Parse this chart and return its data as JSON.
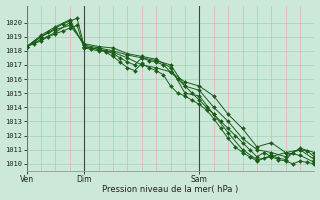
{
  "bg_color": "#cce8d8",
  "grid_color_v": "#f0a0a0",
  "grid_color_h": "#99ccbb",
  "line_color": "#1a5c1a",
  "ylim": [
    1009.5,
    1021.2
  ],
  "yticks": [
    1010,
    1011,
    1012,
    1013,
    1014,
    1015,
    1016,
    1017,
    1018,
    1019,
    1020
  ],
  "xlabel": "Pression niveau de la mer( hPa )",
  "xtick_labels": [
    "Ven",
    "Dim",
    "Sam"
  ],
  "xtick_pos": [
    0,
    24,
    72
  ],
  "vline_pos": [
    0,
    24,
    72
  ],
  "total_hours": 120,
  "series": [
    {
      "x": [
        0,
        3,
        6,
        9,
        12,
        15,
        18,
        21,
        24,
        27,
        30,
        33,
        36,
        39,
        42,
        45,
        48,
        51,
        54,
        57,
        60,
        63,
        66,
        69,
        72,
        75,
        78,
        81,
        84,
        87,
        90,
        93,
        96,
        99,
        102,
        105,
        108,
        111,
        114,
        117,
        120
      ],
      "y": [
        1018.3,
        1018.5,
        1018.7,
        1019.0,
        1019.2,
        1019.4,
        1019.6,
        1019.8,
        1018.2,
        1018.1,
        1018.0,
        1018.0,
        1017.8,
        1017.5,
        1017.2,
        1017.0,
        1017.5,
        1017.3,
        1017.2,
        1017.0,
        1016.5,
        1016.0,
        1015.5,
        1015.0,
        1014.5,
        1014.0,
        1013.5,
        1013.0,
        1012.5,
        1012.0,
        1011.5,
        1011.0,
        1010.5,
        1010.8,
        1010.5,
        1010.3,
        1010.2,
        1010.0,
        1010.2,
        1010.1,
        1010.0
      ]
    },
    {
      "x": [
        0,
        3,
        6,
        9,
        12,
        15,
        18,
        21,
        24,
        27,
        30,
        33,
        36,
        39,
        42,
        45,
        48,
        51,
        54,
        57,
        60,
        63,
        66,
        69,
        72,
        75,
        78,
        81,
        84,
        87,
        90,
        93,
        96,
        99,
        102,
        105,
        108,
        111,
        114,
        117,
        120
      ],
      "y": [
        1018.3,
        1018.6,
        1019.0,
        1019.3,
        1019.6,
        1019.9,
        1020.1,
        1020.3,
        1018.3,
        1018.2,
        1018.1,
        1017.9,
        1017.6,
        1017.2,
        1016.8,
        1016.6,
        1017.1,
        1016.8,
        1016.6,
        1016.3,
        1015.5,
        1015.0,
        1014.8,
        1014.5,
        1014.2,
        1013.8,
        1013.2,
        1012.5,
        1011.8,
        1011.2,
        1010.8,
        1010.5,
        1010.2,
        1010.4,
        1010.6,
        1010.4,
        1010.3,
        1010.8,
        1011.0,
        1010.9,
        1010.5
      ]
    },
    {
      "x": [
        0,
        6,
        12,
        18,
        24,
        30,
        36,
        42,
        48,
        54,
        60,
        66,
        72,
        78,
        84,
        90,
        96,
        102,
        108,
        114,
        120
      ],
      "y": [
        1018.3,
        1019.0,
        1019.5,
        1019.8,
        1018.5,
        1018.3,
        1018.2,
        1017.8,
        1017.6,
        1017.4,
        1016.8,
        1015.0,
        1014.8,
        1013.5,
        1012.2,
        1011.0,
        1010.3,
        1010.5,
        1010.8,
        1011.0,
        1010.3
      ]
    },
    {
      "x": [
        0,
        6,
        12,
        18,
        24,
        30,
        36,
        42,
        48,
        54,
        60,
        66,
        72,
        78,
        84,
        90,
        96,
        102,
        108,
        114,
        120
      ],
      "y": [
        1018.3,
        1018.8,
        1019.3,
        1020.0,
        1018.4,
        1018.2,
        1018.0,
        1017.7,
        1017.5,
        1017.3,
        1017.0,
        1015.5,
        1015.2,
        1014.0,
        1013.0,
        1011.8,
        1011.0,
        1010.8,
        1010.5,
        1011.1,
        1010.8
      ]
    },
    {
      "x": [
        0,
        6,
        12,
        18,
        24,
        30,
        36,
        42,
        48,
        54,
        60,
        66,
        72,
        78,
        84,
        90,
        96,
        102,
        108,
        114,
        120
      ],
      "y": [
        1018.3,
        1019.1,
        1019.7,
        1020.2,
        1018.3,
        1018.1,
        1017.9,
        1017.5,
        1017.0,
        1016.8,
        1016.5,
        1015.8,
        1015.5,
        1014.8,
        1013.5,
        1012.5,
        1011.2,
        1011.5,
        1010.8,
        1010.6,
        1010.1
      ]
    }
  ]
}
